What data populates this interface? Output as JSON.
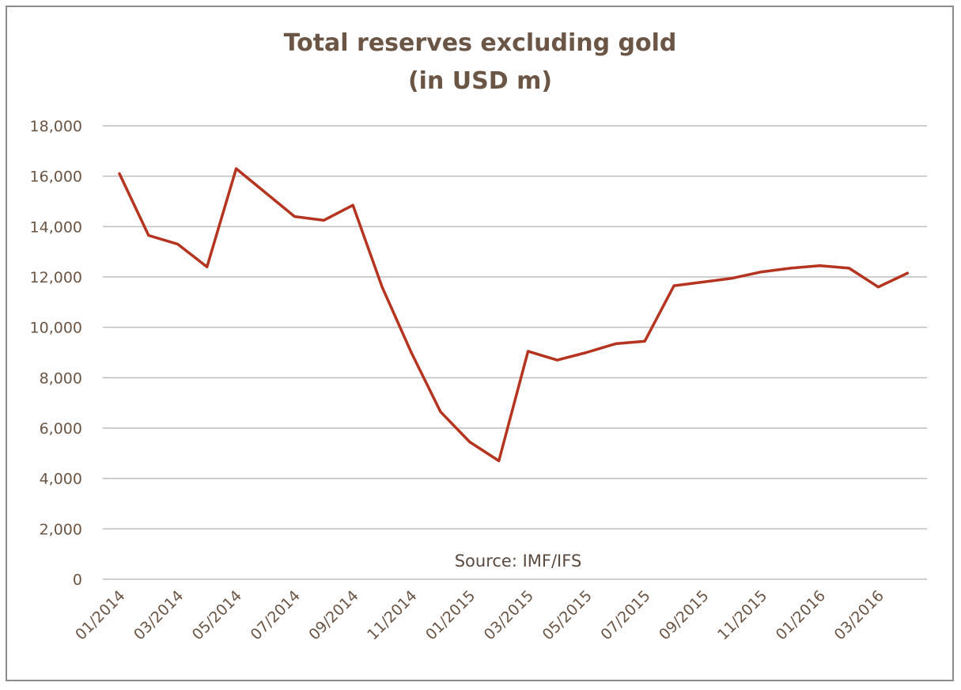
{
  "chart_data": {
    "type": "line",
    "title": "Total reserves excluding gold",
    "subtitle": "(in USD m)",
    "xlabel": "",
    "ylabel": "",
    "ylim": [
      0,
      18000
    ],
    "y_ticks": [
      0,
      2000,
      4000,
      6000,
      8000,
      10000,
      12000,
      14000,
      16000,
      18000
    ],
    "y_tick_labels": [
      "0",
      "2,000",
      "4,000",
      "6,000",
      "8,000",
      "10,000",
      "12,000",
      "14,000",
      "16,000",
      "18,000"
    ],
    "x": [
      "01/2014",
      "02/2014",
      "03/2014",
      "04/2014",
      "05/2014",
      "06/2014",
      "07/2014",
      "08/2014",
      "09/2014",
      "10/2014",
      "11/2014",
      "12/2014",
      "01/2015",
      "02/2015",
      "03/2015",
      "04/2015",
      "05/2015",
      "06/2015",
      "07/2015",
      "08/2015",
      "09/2015",
      "10/2015",
      "11/2015",
      "12/2015",
      "01/2016",
      "02/2016",
      "03/2016",
      "04/2016"
    ],
    "x_tick_labels": [
      "01/2014",
      "03/2014",
      "05/2014",
      "07/2014",
      "09/2014",
      "11/2014",
      "01/2015",
      "03/2015",
      "05/2015",
      "07/2015",
      "09/2015",
      "11/2015",
      "01/2016",
      "03/2016"
    ],
    "series": [
      {
        "values": [
          16100,
          13650,
          13300,
          12400,
          16300,
          15350,
          14400,
          14250,
          14850,
          11600,
          9000,
          6650,
          5450,
          4700,
          9050,
          8700,
          9000,
          9350,
          9450,
          11650,
          11800,
          11950,
          12200,
          12350,
          12450,
          12350,
          11600,
          12150
        ]
      }
    ],
    "annotations": [
      {
        "text": "Source: IMF/IFS"
      }
    ],
    "grid": true,
    "legend": "none",
    "colors": {
      "line": "#b5341f",
      "grid": "#bdbdbd",
      "text": "#6b5545",
      "frame": "#8c8c8c"
    }
  }
}
